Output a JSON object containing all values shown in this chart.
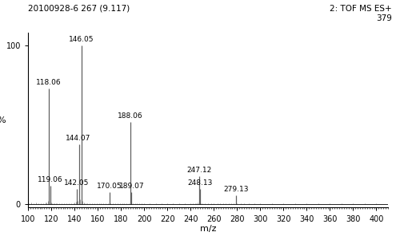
{
  "title_left": "20100928-6 267 (9.117)",
  "title_right": "2: TOF MS ES+\n379",
  "xlabel": "m/z",
  "ylabel": "%",
  "xlim": [
    100,
    410
  ],
  "ylim": [
    -2,
    108
  ],
  "xticks": [
    100,
    120,
    140,
    160,
    180,
    200,
    220,
    240,
    260,
    280,
    300,
    320,
    340,
    360,
    380,
    400
  ],
  "yticks": [
    0,
    100
  ],
  "peaks": [
    {
      "mz": 118.06,
      "intensity": 73,
      "label": "118.06"
    },
    {
      "mz": 119.06,
      "intensity": 12,
      "label": "119.06"
    },
    {
      "mz": 142.05,
      "intensity": 10,
      "label": "142.05"
    },
    {
      "mz": 144.07,
      "intensity": 38,
      "label": "144.07"
    },
    {
      "mz": 146.05,
      "intensity": 100,
      "label": "146.05"
    },
    {
      "mz": 170.05,
      "intensity": 8,
      "label": "170.05"
    },
    {
      "mz": 188.06,
      "intensity": 52,
      "label": "188.06"
    },
    {
      "mz": 189.07,
      "intensity": 8,
      "label": "189.07"
    },
    {
      "mz": 247.12,
      "intensity": 18,
      "label": "247.12"
    },
    {
      "mz": 248.13,
      "intensity": 10,
      "label": "248.13"
    },
    {
      "mz": 279.13,
      "intensity": 6,
      "label": "279.13"
    }
  ],
  "noise_peaks": [
    {
      "mz": 101,
      "intensity": 1.0
    },
    {
      "mz": 103,
      "intensity": 1.2
    },
    {
      "mz": 105,
      "intensity": 1.0
    },
    {
      "mz": 107,
      "intensity": 1.2
    },
    {
      "mz": 109,
      "intensity": 1.0
    },
    {
      "mz": 111,
      "intensity": 1.0
    },
    {
      "mz": 113,
      "intensity": 1.0
    },
    {
      "mz": 115,
      "intensity": 1.5
    },
    {
      "mz": 116,
      "intensity": 1.2
    },
    {
      "mz": 117,
      "intensity": 2.5
    },
    {
      "mz": 120,
      "intensity": 1.5
    },
    {
      "mz": 121,
      "intensity": 1.0
    },
    {
      "mz": 122,
      "intensity": 1.0
    },
    {
      "mz": 123,
      "intensity": 1.0
    },
    {
      "mz": 124,
      "intensity": 1.0
    },
    {
      "mz": 125,
      "intensity": 1.0
    },
    {
      "mz": 127,
      "intensity": 1.0
    },
    {
      "mz": 129,
      "intensity": 1.0
    },
    {
      "mz": 131,
      "intensity": 1.0
    },
    {
      "mz": 133,
      "intensity": 1.0
    },
    {
      "mz": 135,
      "intensity": 1.0
    },
    {
      "mz": 137,
      "intensity": 1.0
    },
    {
      "mz": 139,
      "intensity": 1.0
    },
    {
      "mz": 140,
      "intensity": 1.2
    },
    {
      "mz": 141,
      "intensity": 2.0
    },
    {
      "mz": 143,
      "intensity": 2.5
    },
    {
      "mz": 145,
      "intensity": 3.5
    },
    {
      "mz": 147,
      "intensity": 2.5
    },
    {
      "mz": 148,
      "intensity": 1.5
    },
    {
      "mz": 149,
      "intensity": 1.0
    },
    {
      "mz": 150,
      "intensity": 1.0
    },
    {
      "mz": 151,
      "intensity": 1.0
    },
    {
      "mz": 153,
      "intensity": 1.0
    },
    {
      "mz": 155,
      "intensity": 1.0
    },
    {
      "mz": 157,
      "intensity": 1.0
    },
    {
      "mz": 159,
      "intensity": 1.0
    },
    {
      "mz": 161,
      "intensity": 1.0
    },
    {
      "mz": 163,
      "intensity": 1.0
    },
    {
      "mz": 165,
      "intensity": 1.0
    },
    {
      "mz": 167,
      "intensity": 1.0
    },
    {
      "mz": 169,
      "intensity": 1.0
    },
    {
      "mz": 171,
      "intensity": 1.0
    },
    {
      "mz": 173,
      "intensity": 1.0
    },
    {
      "mz": 175,
      "intensity": 1.0
    },
    {
      "mz": 177,
      "intensity": 1.0
    },
    {
      "mz": 179,
      "intensity": 1.0
    },
    {
      "mz": 181,
      "intensity": 1.0
    },
    {
      "mz": 183,
      "intensity": 1.0
    },
    {
      "mz": 185,
      "intensity": 1.0
    },
    {
      "mz": 187,
      "intensity": 1.0
    },
    {
      "mz": 190,
      "intensity": 1.0
    },
    {
      "mz": 192,
      "intensity": 1.0
    },
    {
      "mz": 194,
      "intensity": 1.0
    },
    {
      "mz": 196,
      "intensity": 1.0
    },
    {
      "mz": 198,
      "intensity": 1.0
    },
    {
      "mz": 200,
      "intensity": 1.0
    },
    {
      "mz": 205,
      "intensity": 1.0
    },
    {
      "mz": 210,
      "intensity": 1.0
    },
    {
      "mz": 215,
      "intensity": 1.0
    },
    {
      "mz": 220,
      "intensity": 1.0
    },
    {
      "mz": 225,
      "intensity": 1.0
    },
    {
      "mz": 230,
      "intensity": 1.0
    },
    {
      "mz": 235,
      "intensity": 1.0
    },
    {
      "mz": 240,
      "intensity": 1.0
    },
    {
      "mz": 242,
      "intensity": 1.0
    },
    {
      "mz": 244,
      "intensity": 1.0
    },
    {
      "mz": 245,
      "intensity": 1.0
    },
    {
      "mz": 246,
      "intensity": 1.2
    },
    {
      "mz": 249,
      "intensity": 1.0
    },
    {
      "mz": 250,
      "intensity": 1.0
    },
    {
      "mz": 252,
      "intensity": 1.0
    },
    {
      "mz": 255,
      "intensity": 1.0
    },
    {
      "mz": 258,
      "intensity": 1.0
    },
    {
      "mz": 260,
      "intensity": 1.0
    },
    {
      "mz": 263,
      "intensity": 1.0
    },
    {
      "mz": 265,
      "intensity": 1.0
    },
    {
      "mz": 268,
      "intensity": 1.0
    },
    {
      "mz": 270,
      "intensity": 1.0
    },
    {
      "mz": 273,
      "intensity": 1.0
    },
    {
      "mz": 275,
      "intensity": 1.0
    },
    {
      "mz": 277,
      "intensity": 1.0
    },
    {
      "mz": 280,
      "intensity": 1.0
    },
    {
      "mz": 283,
      "intensity": 1.0
    },
    {
      "mz": 286,
      "intensity": 1.0
    },
    {
      "mz": 290,
      "intensity": 1.0
    },
    {
      "mz": 295,
      "intensity": 1.0
    },
    {
      "mz": 300,
      "intensity": 1.0
    },
    {
      "mz": 310,
      "intensity": 1.0
    },
    {
      "mz": 320,
      "intensity": 1.0
    },
    {
      "mz": 330,
      "intensity": 1.0
    },
    {
      "mz": 340,
      "intensity": 1.0
    },
    {
      "mz": 350,
      "intensity": 1.0
    },
    {
      "mz": 360,
      "intensity": 1.0
    },
    {
      "mz": 370,
      "intensity": 1.0
    },
    {
      "mz": 380,
      "intensity": 1.0
    },
    {
      "mz": 390,
      "intensity": 1.0
    },
    {
      "mz": 400,
      "intensity": 1.0
    }
  ],
  "bar_color": "#606060",
  "bg_color": "#ffffff",
  "label_fontsize": 6.5,
  "title_fontsize": 7.5
}
